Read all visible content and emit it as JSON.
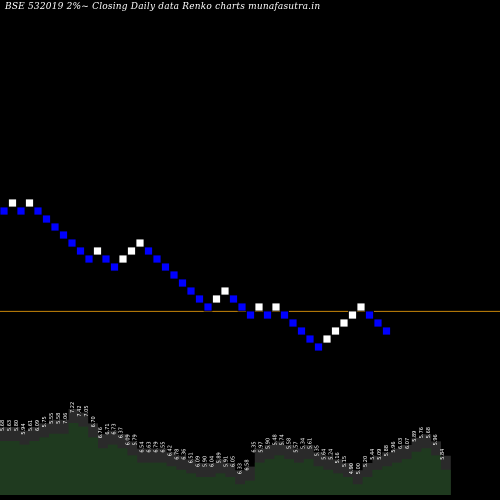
{
  "header": {
    "title": "BSE 532019 2%~  Closing Daily data  Renko  charts munafasutra.in"
  },
  "colors": {
    "background": "#000000",
    "up_brick": "#ffffff",
    "down_brick": "#0000ff",
    "brick_border": "#000000",
    "level_line": "#c8860a",
    "volume_fill": "#1f3a1f",
    "volume_shadow": "#2a2a2a",
    "volume_label": "#ffffff"
  },
  "chart_data": {
    "type": "renko",
    "title": "BSE 532019 2%~  Closing Daily data  Renko  charts munafasutra.in",
    "brick_size_percent": 2,
    "level_line_value": 6.41,
    "brick_levels": [
      8.5,
      8.667,
      8.5,
      8.667,
      8.5,
      8.333,
      8.167,
      8.0,
      7.833,
      7.667,
      7.5,
      7.667,
      7.5,
      7.333,
      7.5,
      7.667,
      7.833,
      7.667,
      7.5,
      7.333,
      7.167,
      7.0,
      6.833,
      6.667,
      6.5,
      6.667,
      6.833,
      6.667,
      6.5,
      6.333,
      6.5,
      6.333,
      6.5,
      6.333,
      6.167,
      6.0,
      5.833,
      5.667,
      5.833,
      6.0,
      6.167,
      6.333,
      6.5,
      6.333,
      6.167,
      6.0
    ],
    "brick_directions": [
      "down",
      "up",
      "down",
      "up",
      "down",
      "down",
      "down",
      "down",
      "down",
      "down",
      "down",
      "up",
      "down",
      "down",
      "up",
      "up",
      "up",
      "down",
      "down",
      "down",
      "down",
      "down",
      "down",
      "down",
      "down",
      "up",
      "up",
      "down",
      "down",
      "down",
      "up",
      "down",
      "up",
      "down",
      "down",
      "down",
      "down",
      "down",
      "up",
      "up",
      "up",
      "up",
      "up",
      "down",
      "down",
      "down"
    ],
    "volume_values": [
      0.6,
      0.6,
      0.55,
      0.6,
      0.65,
      0.7,
      0.7,
      0.85,
      0.8,
      0.65,
      0.5,
      0.55,
      0.5,
      0.4,
      0.3,
      0.3,
      0.3,
      0.25,
      0.2,
      0.15,
      0.1,
      0.1,
      0.15,
      0.1,
      0.0,
      0.05,
      0.3,
      0.35,
      0.4,
      0.35,
      0.3,
      0.35,
      0.25,
      0.2,
      0.15,
      0.1,
      0.0,
      0.1,
      0.2,
      0.25,
      0.3,
      0.35,
      0.45,
      0.5,
      0.4,
      0.2
    ],
    "price_labels": [
      "5.68",
      "5.63",
      "5.80",
      "5.94",
      "5.61",
      "6.09",
      "5.75",
      "5.55",
      "5.58",
      "7.06",
      "7.22",
      "7.42",
      "7.05",
      "6.70",
      "6.76",
      "6.71",
      "6.73",
      "6.37",
      "6.09",
      "5.79",
      "6.54",
      "6.63",
      "6.79",
      "6.55",
      "6.42",
      "6.78",
      "6.36",
      "6.51",
      "6.09",
      "5.90",
      "6.04",
      "5.89",
      "5.91",
      "6.05",
      "6.33",
      "6.58",
      "6.35",
      "5.97",
      "5.90",
      "5.48",
      "5.74",
      "5.58",
      "5.57",
      "5.34",
      "5.61",
      "5.35",
      "5.64",
      "5.24",
      "5.16",
      "5.15",
      "4.90",
      "5.00",
      "5.20",
      "5.44",
      "5.09",
      "5.88",
      "5.96",
      "6.03",
      "6.07",
      "5.89",
      "5.76",
      "5.68",
      "5.96",
      "5.84"
    ],
    "grid": false,
    "legend": "none"
  }
}
